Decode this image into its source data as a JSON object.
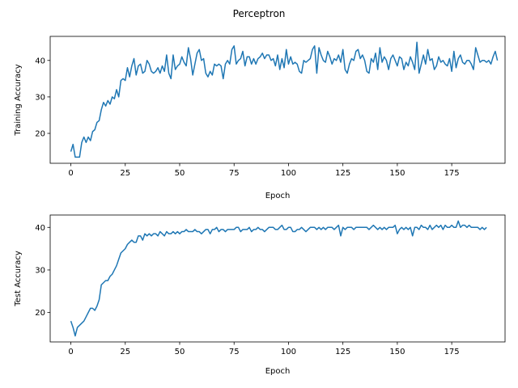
{
  "figure": {
    "title": "Perceptron"
  },
  "chart_data": [
    {
      "type": "line",
      "xlabel": "Epoch",
      "ylabel": "Training Accuracy",
      "xlim": [
        -9.5,
        199.5
      ],
      "ylim": [
        11.8,
        46.6
      ],
      "xticks": [
        0,
        25,
        50,
        75,
        100,
        125,
        150,
        175
      ],
      "yticks": [
        20,
        30,
        40
      ],
      "grid": false,
      "color": "#1f77b4",
      "x_start": 0,
      "x_step": 1,
      "values": [
        15.0,
        17.0,
        13.5,
        13.5,
        13.5,
        17.5,
        19.0,
        17.5,
        19.0,
        18.0,
        20.5,
        21.0,
        23.0,
        23.5,
        26.5,
        28.5,
        27.5,
        29.0,
        28.0,
        30.0,
        29.5,
        32.0,
        30.0,
        34.5,
        35.0,
        34.5,
        38.0,
        35.5,
        38.5,
        40.5,
        36.0,
        38.5,
        39.0,
        36.5,
        37.0,
        40.0,
        39.0,
        37.0,
        36.5,
        37.0,
        38.0,
        36.5,
        38.5,
        37.0,
        41.5,
        36.5,
        35.0,
        41.5,
        37.5,
        38.5,
        39.0,
        41.0,
        39.5,
        38.5,
        43.5,
        40.5,
        36.0,
        39.0,
        42.0,
        43.0,
        40.0,
        40.5,
        36.5,
        35.5,
        37.0,
        36.0,
        39.0,
        38.5,
        39.0,
        38.5,
        35.0,
        39.0,
        40.0,
        39.0,
        43.0,
        44.0,
        39.0,
        40.0,
        40.5,
        42.5,
        38.5,
        41.0,
        41.0,
        39.0,
        40.5,
        39.0,
        40.5,
        41.0,
        42.0,
        40.5,
        41.5,
        41.5,
        40.0,
        40.5,
        38.5,
        41.5,
        37.5,
        40.5,
        38.0,
        43.0,
        39.0,
        41.0,
        39.0,
        39.5,
        39.0,
        37.0,
        36.5,
        40.0,
        39.5,
        40.0,
        40.5,
        43.0,
        44.0,
        36.5,
        43.5,
        41.5,
        40.0,
        39.5,
        42.5,
        41.0,
        39.0,
        40.5,
        40.0,
        41.5,
        39.5,
        43.0,
        37.5,
        36.5,
        39.0,
        40.5,
        40.0,
        42.5,
        43.0,
        40.5,
        41.5,
        40.0,
        37.0,
        36.5,
        40.5,
        39.5,
        42.0,
        37.5,
        43.5,
        39.5,
        41.0,
        40.0,
        37.5,
        40.5,
        41.5,
        40.0,
        38.5,
        41.0,
        40.5,
        37.5,
        39.5,
        38.5,
        41.0,
        39.5,
        37.5,
        45.0,
        36.5,
        39.0,
        41.5,
        39.0,
        43.0,
        40.0,
        40.5,
        37.5,
        38.5,
        41.0,
        39.5,
        40.0,
        39.0,
        38.5,
        40.5,
        37.0,
        42.5,
        38.0,
        40.5,
        41.5,
        39.5,
        39.0,
        40.0,
        40.0,
        39.0,
        37.5,
        43.5,
        41.5,
        39.5,
        40.0,
        40.0,
        39.5,
        40.0,
        39.0,
        41.0,
        42.5,
        40.0
      ]
    },
    {
      "type": "line",
      "xlabel": "Epoch",
      "ylabel": "Test Accuracy",
      "xlim": [
        -9.5,
        199.5
      ],
      "ylim": [
        13.1,
        42.9
      ],
      "xticks": [
        0,
        25,
        50,
        75,
        100,
        125,
        150,
        175
      ],
      "yticks": [
        20,
        30,
        40
      ],
      "grid": false,
      "color": "#1f77b4",
      "x_start": 0,
      "x_step": 1,
      "values": [
        18.0,
        16.5,
        14.5,
        16.5,
        17.0,
        17.5,
        18.0,
        19.0,
        20.0,
        21.0,
        21.0,
        20.5,
        21.5,
        23.0,
        26.5,
        27.0,
        27.5,
        27.5,
        28.5,
        29.0,
        30.0,
        31.0,
        32.5,
        34.0,
        34.5,
        35.0,
        36.0,
        36.5,
        37.0,
        36.5,
        36.5,
        38.0,
        38.0,
        37.0,
        38.5,
        38.0,
        38.5,
        38.0,
        38.5,
        38.5,
        38.0,
        39.0,
        38.5,
        38.0,
        39.0,
        38.5,
        38.5,
        39.0,
        38.5,
        39.0,
        38.5,
        39.0,
        39.0,
        39.5,
        39.0,
        39.0,
        39.0,
        39.5,
        39.0,
        39.0,
        38.5,
        39.0,
        39.5,
        39.5,
        38.5,
        39.5,
        39.5,
        40.0,
        39.0,
        39.5,
        39.5,
        39.0,
        39.5,
        39.5,
        39.5,
        39.5,
        40.0,
        40.0,
        39.0,
        39.5,
        39.5,
        39.5,
        40.0,
        39.0,
        39.5,
        39.5,
        40.0,
        39.5,
        39.5,
        39.0,
        39.5,
        40.0,
        40.0,
        40.0,
        39.5,
        39.5,
        40.0,
        40.5,
        39.5,
        39.5,
        40.0,
        40.0,
        39.0,
        39.0,
        39.5,
        39.5,
        40.0,
        39.5,
        39.0,
        39.5,
        40.0,
        40.0,
        40.0,
        39.5,
        40.0,
        39.5,
        40.0,
        39.5,
        40.0,
        40.0,
        40.0,
        39.5,
        40.0,
        40.5,
        38.0,
        40.0,
        39.5,
        40.0,
        40.0,
        40.0,
        39.5,
        40.0,
        40.0,
        40.0,
        40.0,
        40.0,
        40.0,
        39.5,
        40.0,
        40.5,
        40.0,
        39.5,
        40.0,
        39.5,
        40.0,
        39.5,
        40.0,
        40.0,
        40.0,
        40.5,
        38.5,
        39.5,
        40.0,
        39.5,
        40.0,
        39.5,
        40.0,
        38.0,
        40.0,
        40.0,
        39.5,
        40.5,
        40.0,
        40.0,
        39.5,
        40.5,
        39.5,
        40.0,
        40.5,
        40.0,
        40.5,
        39.5,
        40.5,
        40.0,
        40.0,
        40.5,
        40.0,
        40.0,
        41.5,
        40.0,
        40.5,
        40.5,
        40.0,
        40.5,
        40.0,
        40.0,
        40.0,
        40.0,
        39.5,
        40.0,
        39.5,
        40.0
      ]
    }
  ]
}
